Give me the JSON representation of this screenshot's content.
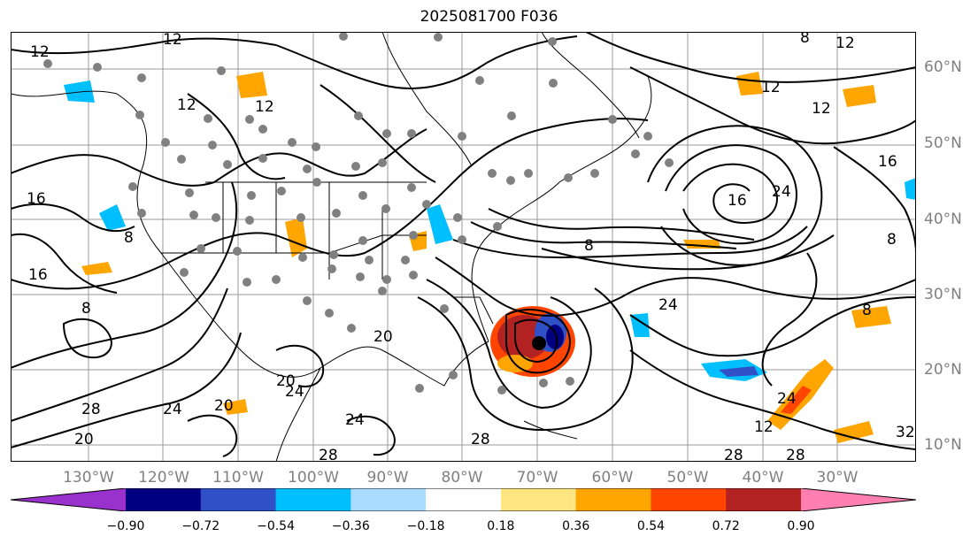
{
  "title": "2025081700 F036",
  "lat_labels": [
    "60°N",
    "50°N",
    "40°N",
    "30°N",
    "20°N",
    "10°N"
  ],
  "lon_labels": [
    "130°W",
    "120°W",
    "110°W",
    "100°W",
    "90°W",
    "80°W",
    "70°W",
    "60°W",
    "50°W",
    "40°W",
    "30°W"
  ],
  "colorbar": {
    "ticks": [
      "−0.90",
      "−0.72",
      "−0.54",
      "−0.36",
      "−0.18",
      "0.18",
      "0.36",
      "0.54",
      "0.72",
      "0.90"
    ],
    "colors": [
      "#9932cc",
      "#000080",
      "#3050c8",
      "#00bfff",
      "#aadcff",
      "#ffffff",
      "#ffe680",
      "#ffa500",
      "#ff4500",
      "#b22222",
      "#ff80b0"
    ]
  },
  "contour_labels": [
    "12",
    "12",
    "12",
    "12",
    "12",
    "12",
    "16",
    "16",
    "16",
    "8",
    "8",
    "8",
    "8",
    "12",
    "20",
    "20",
    "24",
    "24",
    "24",
    "28",
    "28",
    "28",
    "28",
    "24",
    "20",
    "8",
    "8",
    "12",
    "16",
    "24",
    "28",
    "32",
    "20",
    "24"
  ]
}
